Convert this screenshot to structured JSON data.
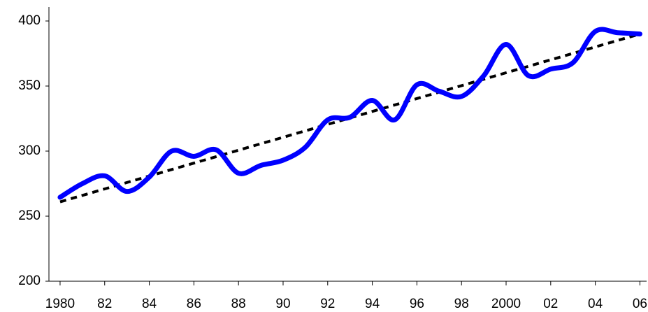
{
  "chart_data": {
    "type": "line",
    "x": [
      1980,
      1981,
      1982,
      1983,
      1984,
      1985,
      1986,
      1987,
      1988,
      1989,
      1990,
      1991,
      1992,
      1993,
      1994,
      1995,
      1996,
      1997,
      1998,
      1999,
      2000,
      2001,
      2002,
      2003,
      2004,
      2005,
      2006
    ],
    "series": [
      {
        "color": "#0000ff",
        "values": [
          264.5,
          275,
          281,
          269,
          280,
          300,
          296,
          301,
          283,
          289,
          293,
          303,
          324,
          326,
          339,
          324,
          351,
          346,
          342,
          358,
          382,
          358,
          363,
          368,
          392,
          391,
          390
        ]
      }
    ],
    "trendline": {
      "x": [
        1980,
        2006
      ],
      "values": [
        261,
        390
      ],
      "color": "#000000",
      "dashed": true
    },
    "xlim": [
      1979.5,
      2006.3
    ],
    "ylim": [
      200,
      400
    ],
    "yticks": [
      200,
      250,
      300,
      350,
      400
    ],
    "xticks": [
      1980,
      {
        "value": 1982,
        "label": "82"
      },
      {
        "value": 1984,
        "label": "84"
      },
      {
        "value": 1986,
        "label": "86"
      },
      {
        "value": 1988,
        "label": "88"
      },
      {
        "value": 1990,
        "label": "90"
      },
      {
        "value": 1992,
        "label": "92"
      },
      {
        "value": 1994,
        "label": "94"
      },
      {
        "value": 1996,
        "label": "96"
      },
      {
        "value": 1998,
        "label": "98"
      },
      2000,
      {
        "value": 2002,
        "label": "02"
      },
      {
        "value": 2004,
        "label": "04"
      },
      {
        "value": 2006,
        "label": "06"
      }
    ]
  }
}
